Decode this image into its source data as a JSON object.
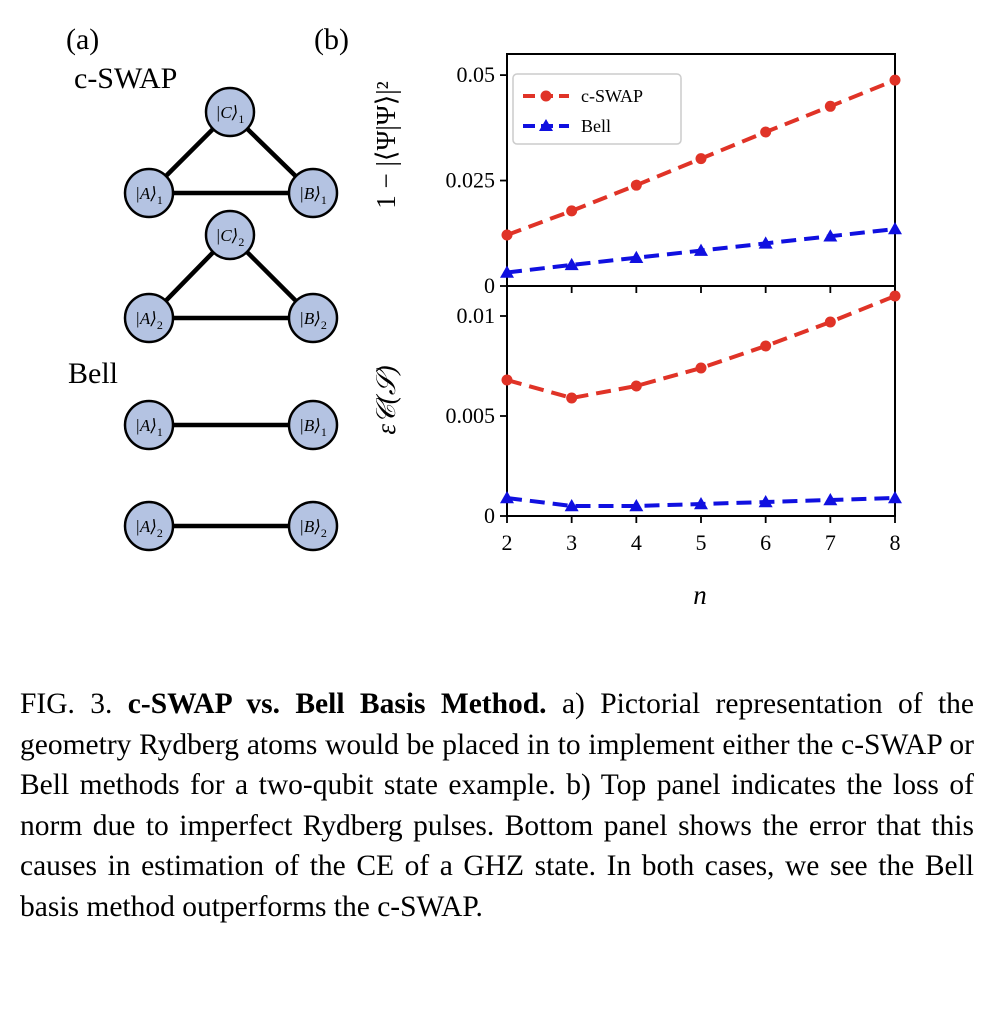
{
  "panel_a": {
    "tag": "(a)",
    "cswap_label": "c-SWAP",
    "bell_label": "Bell",
    "nodes": {
      "c1": {
        "sym": "|C⟩",
        "sub": "1"
      },
      "a1": {
        "sym": "|A⟩",
        "sub": "1"
      },
      "b1": {
        "sym": "|B⟩",
        "sub": "1"
      },
      "c2": {
        "sym": "|C⟩",
        "sub": "2"
      },
      "a2": {
        "sym": "|A⟩",
        "sub": "2"
      },
      "b2": {
        "sym": "|B⟩",
        "sub": "2"
      },
      "bell_a1": {
        "sym": "|A⟩",
        "sub": "1"
      },
      "bell_b1": {
        "sym": "|B⟩",
        "sub": "1"
      },
      "bell_a2": {
        "sym": "|A⟩",
        "sub": "2"
      },
      "bell_b2": {
        "sym": "|B⟩",
        "sub": "2"
      }
    },
    "node_color": "#b4c3e2"
  },
  "panel_b": {
    "tag": "(b)"
  },
  "chart_data": [
    {
      "type": "line",
      "ylabel": "1 − |⟨Ψ|Ψ⟩|²",
      "xlabel": "",
      "x": [
        2,
        3,
        4,
        5,
        6,
        7,
        8
      ],
      "xlim": [
        2,
        8
      ],
      "ylim": [
        0,
        0.055
      ],
      "yticks": [
        0,
        0.025,
        0.05
      ],
      "ytick_labels": [
        "0",
        "0.025",
        "0.05"
      ],
      "legend": "top-left",
      "grid": false,
      "series": [
        {
          "name": "c-SWAP",
          "color": "#e03327",
          "marker": "circle",
          "values": [
            0.0121,
            0.0178,
            0.0239,
            0.0302,
            0.0365,
            0.0426,
            0.0488
          ]
        },
        {
          "name": "Bell",
          "color": "#1010e0",
          "marker": "triangle",
          "values": [
            0.0032,
            0.005,
            0.0067,
            0.0084,
            0.0101,
            0.0118,
            0.0135
          ]
        }
      ]
    },
    {
      "type": "line",
      "ylabel": "ε𝒞(𝒮)",
      "xlabel": "n",
      "x": [
        2,
        3,
        4,
        5,
        6,
        7,
        8
      ],
      "xticks": [
        "2",
        "3",
        "4",
        "5",
        "6",
        "7",
        "8"
      ],
      "xlim": [
        2,
        8
      ],
      "ylim": [
        0,
        0.0115
      ],
      "yticks": [
        0,
        0.005,
        0.01
      ],
      "ytick_labels": [
        "0",
        "0.005",
        "0.01"
      ],
      "grid": false,
      "series": [
        {
          "name": "c-SWAP",
          "color": "#e03327",
          "marker": "circle",
          "values": [
            0.0068,
            0.0059,
            0.0065,
            0.0074,
            0.0085,
            0.0097,
            0.011
          ]
        },
        {
          "name": "Bell",
          "color": "#1010e0",
          "marker": "triangle",
          "values": [
            0.0009,
            0.0005,
            0.0005,
            0.0006,
            0.0007,
            0.0008,
            0.0009
          ]
        }
      ]
    }
  ],
  "caption": {
    "label": "FIG. 3.",
    "title": "c-SWAP vs.  Bell Basis Method.",
    "body": "a) Pictorial representation of the geometry Rydberg atoms would be placed in to implement either the c-SWAP or Bell methods for a two-qubit state example. b) Top panel indicates the loss of norm due to imperfect Rydberg pulses.  Bottom panel shows the error that this causes in estimation of the CE of a GHZ state. In both cases, we see the Bell basis method outperforms the c-SWAP."
  }
}
